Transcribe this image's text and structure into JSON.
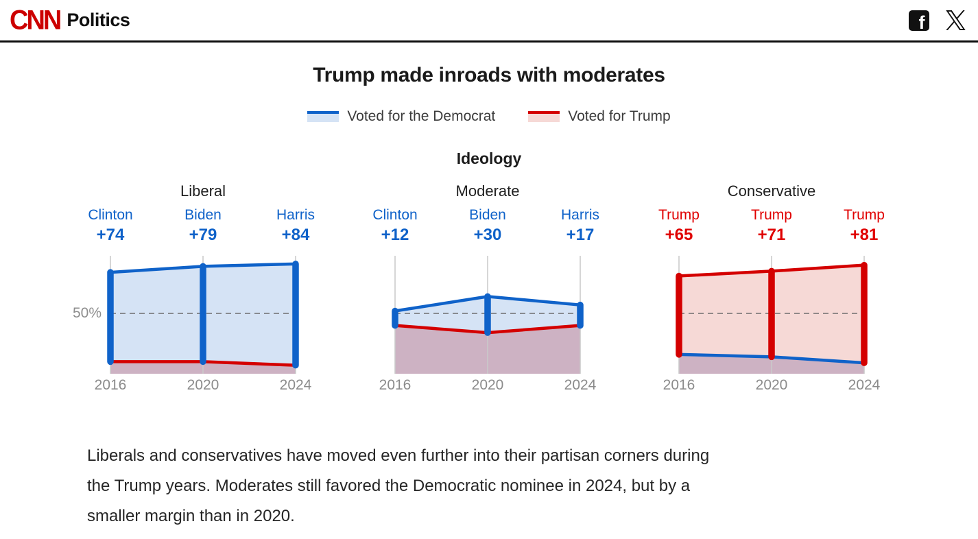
{
  "header": {
    "brand": "CNN",
    "section": "Politics"
  },
  "chart": {
    "title": "Trump made inroads with moderates",
    "group_label": "Ideology",
    "legend": [
      {
        "label": "Voted for the Democrat"
      },
      {
        "label": "Voted for Trump"
      }
    ],
    "axis": {
      "years": [
        "2016",
        "2020",
        "2024"
      ],
      "fifty_label": "50%"
    },
    "colors": {
      "dem_line": "#0f62c9",
      "trump_line": "#d40000",
      "dem_fill": "#d5e3f5",
      "trump_fill": "#f6d9d6",
      "overlap_fill": "#cdb2c3",
      "gridline": "#c9c9c9",
      "dashed": "#6e6e6e"
    }
  },
  "chart_data": {
    "type": "area",
    "description": "Slope-band chart of presidential vote share by ideology; band spans Democrat vs Trump share, y-axis 0-100%, dashed reference at 50%",
    "x": [
      "2016",
      "2020",
      "2024"
    ],
    "ylim": [
      0,
      100
    ],
    "panels": [
      {
        "title": "Liberal",
        "winner": "dem",
        "labels": [
          {
            "name": "Clinton",
            "margin": "+74"
          },
          {
            "name": "Biden",
            "margin": "+79"
          },
          {
            "name": "Harris",
            "margin": "+84"
          }
        ],
        "series": [
          {
            "name": "Democrat share %",
            "values": [
              84,
              89,
              91
            ]
          },
          {
            "name": "Trump share %",
            "values": [
              10,
              10,
              7
            ]
          }
        ]
      },
      {
        "title": "Moderate",
        "winner": "dem",
        "labels": [
          {
            "name": "Clinton",
            "margin": "+12"
          },
          {
            "name": "Biden",
            "margin": "+30"
          },
          {
            "name": "Harris",
            "margin": "+17"
          }
        ],
        "series": [
          {
            "name": "Democrat share %",
            "values": [
              52,
              64,
              57
            ]
          },
          {
            "name": "Trump share %",
            "values": [
              40,
              34,
              40
            ]
          }
        ]
      },
      {
        "title": "Conservative",
        "winner": "trump",
        "labels": [
          {
            "name": "Trump",
            "margin": "+65"
          },
          {
            "name": "Trump",
            "margin": "+71"
          },
          {
            "name": "Trump",
            "margin": "+81"
          }
        ],
        "series": [
          {
            "name": "Democrat share %",
            "values": [
              16,
              14,
              9
            ]
          },
          {
            "name": "Trump share %",
            "values": [
              81,
              85,
              90
            ]
          }
        ]
      }
    ]
  },
  "caption_lines": [
    "Liberals and conservatives have moved even further into their partisan corners during",
    "the Trump years. Moderates still favored the Democratic nominee in 2024, but by a",
    "smaller margin than in 2020."
  ]
}
